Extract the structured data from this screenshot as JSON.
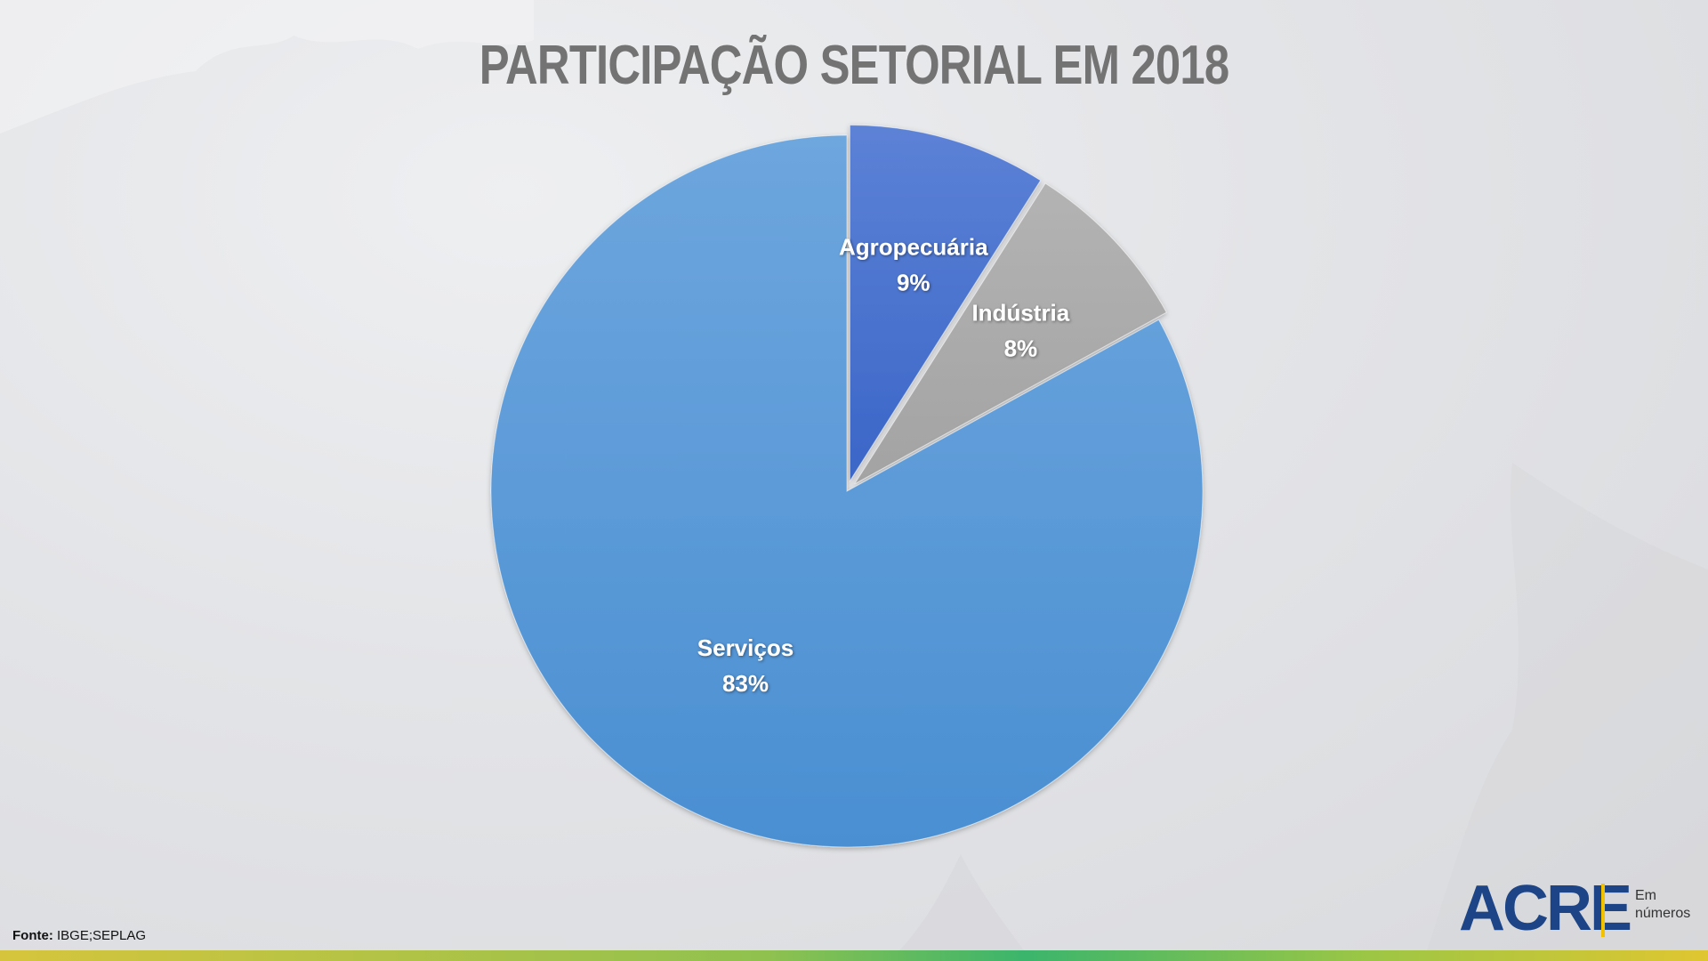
{
  "title": "PARTICIPAÇÃO SETORIAL EM 2018",
  "source": {
    "label": "Fonte:",
    "text": "IBGE;SEPLAG"
  },
  "logo": {
    "main": "ACRE",
    "sub_line1": "Em",
    "sub_line2": "números",
    "colors": {
      "main": "#1c4487",
      "bar": "#f2c200"
    }
  },
  "chart_data": {
    "type": "pie",
    "title": "PARTICIPAÇÃO SETORIAL EM 2018",
    "slices": [
      {
        "label": "Agropecuária",
        "value": 9,
        "display": "9%",
        "color": "#3b66c8",
        "color_light": "#5c82d6",
        "exploded": true
      },
      {
        "label": "Indústria",
        "value": 8,
        "display": "8%",
        "color": "#a3a3a3",
        "color_light": "#b3b3b3",
        "exploded": true
      },
      {
        "label": "Serviços",
        "value": 83,
        "display": "83%",
        "color": "#4a8fd2",
        "color_light": "#6ea6de",
        "exploded": false
      }
    ],
    "start_angle_deg": 0,
    "direction": "clockwise",
    "legend": "none",
    "data_labels": "inside"
  }
}
